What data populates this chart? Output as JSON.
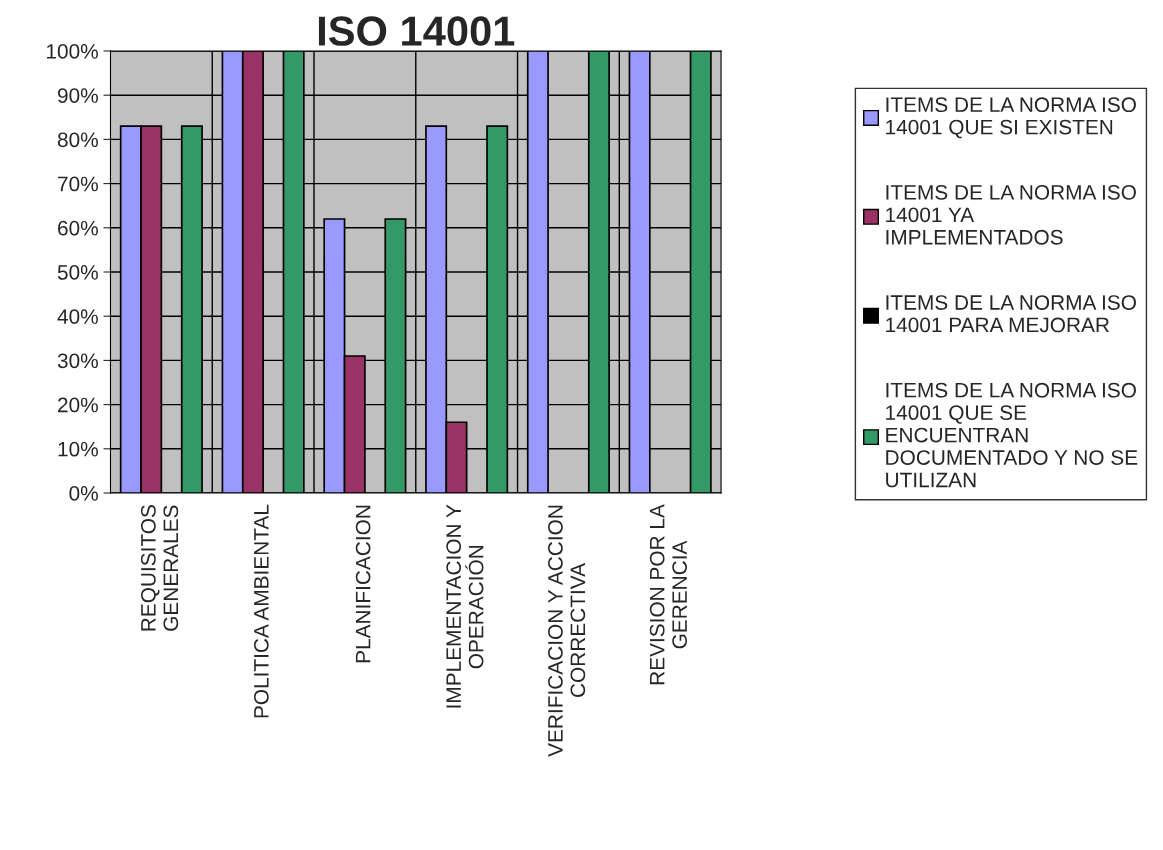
{
  "chart_data": {
    "type": "bar",
    "title": "ISO 14001",
    "categories": [
      "REQUISITOS\nGENERALES",
      "POLITICA AMBIENTAL",
      "PLANIFICACION",
      "IMPLEMENTACION Y\nOPERACIÓN",
      "VERIFICACION Y ACCION\nCORRECTIVA",
      "REVISION POR LA\nGERENCIA"
    ],
    "series": [
      {
        "name": "ITEMS DE LA NORMA ISO\n14001 QUE SI EXISTEN",
        "color": "#9999ff",
        "values": [
          83,
          100,
          62,
          83,
          100,
          100
        ]
      },
      {
        "name": "ITEMS DE LA NORMA ISO\n14001 YA\nIMPLEMENTADOS",
        "color": "#993366",
        "values": [
          83,
          100,
          31,
          16,
          null,
          null
        ]
      },
      {
        "name": "ITEMS DE LA NORMA ISO\n14001 PARA MEJORAR",
        "color": "#000000",
        "values": [
          null,
          null,
          null,
          null,
          null,
          null
        ]
      },
      {
        "name": "ITEMS DE LA NORMA ISO\n14001 QUE SE\nENCUENTRAN\nDOCUMENTADO Y NO SE\nUTILIZAN",
        "color": "#339966",
        "values": [
          83,
          100,
          62,
          83,
          100,
          100
        ]
      }
    ],
    "ylim": [
      0,
      100
    ],
    "yticks": [
      {
        "value": 0,
        "label": "0%"
      },
      {
        "value": 10,
        "label": "10%"
      },
      {
        "value": 20,
        "label": "20%"
      },
      {
        "value": 30,
        "label": "30%"
      },
      {
        "value": 40,
        "label": "40%"
      },
      {
        "value": 50,
        "label": "50%"
      },
      {
        "value": 60,
        "label": "60%"
      },
      {
        "value": 70,
        "label": "70%"
      },
      {
        "value": 80,
        "label": "80%"
      },
      {
        "value": 90,
        "label": "90%"
      },
      {
        "value": 100,
        "label": "100%"
      }
    ],
    "grid": true,
    "legend": "right"
  }
}
